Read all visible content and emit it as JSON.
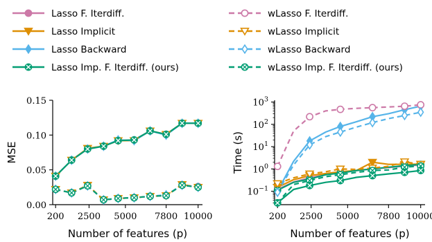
{
  "colors": {
    "lasso_fi": "#cc79a7",
    "lasso_implicit": "#de8f05",
    "lasso_backward": "#56b4e9",
    "lasso_imp_fi": "#029e73"
  },
  "legend": [
    {
      "label": "Lasso F. Iterdiff.",
      "color_key": "lasso_fi",
      "dashed": false,
      "marker": "circle"
    },
    {
      "label": "wLasso F. Iterdiff.",
      "color_key": "lasso_fi",
      "dashed": true,
      "marker": "circle"
    },
    {
      "label": "Lasso Implicit",
      "color_key": "lasso_implicit",
      "dashed": false,
      "marker": "triangle-down"
    },
    {
      "label": "wLasso Implicit",
      "color_key": "lasso_implicit",
      "dashed": true,
      "marker": "triangle-down"
    },
    {
      "label": "Lasso Backward",
      "color_key": "lasso_backward",
      "dashed": false,
      "marker": "diamond"
    },
    {
      "label": "wLasso Backward",
      "color_key": "lasso_backward",
      "dashed": true,
      "marker": "diamond"
    },
    {
      "label": "Lasso Imp. F. Iterdiff. (ours)",
      "color_key": "lasso_imp_fi",
      "dashed": false,
      "marker": "x-circle"
    },
    {
      "label": "wLasso Imp. F. Iterdiff. (ours)",
      "color_key": "lasso_imp_fi",
      "dashed": true,
      "marker": "x-circle"
    }
  ],
  "chart_data": [
    {
      "type": "line",
      "xlabel": "Number of features (p)",
      "ylabel": "MSE",
      "x_ticks": [
        200,
        2500,
        5000,
        7800,
        10000
      ],
      "y_ticks": [
        0.0,
        0.05,
        0.1,
        0.15
      ],
      "y_tick_labels": [
        "0.00",
        "0.05",
        "0.10",
        "0.15"
      ],
      "xlim": [
        0,
        10300
      ],
      "ylim": [
        0.0,
        0.15
      ],
      "yscale": "linear",
      "series": [
        {
          "name": "Lasso F. Iterdiff.",
          "color_key": "lasso_fi",
          "dashed": false,
          "marker": "circle",
          "x": [
            200,
            1300,
            2400,
            3500,
            4500,
            5600,
            6700,
            7800,
            8900,
            10000
          ],
          "y": [
            0.041,
            0.064,
            0.08,
            0.084,
            0.092,
            0.093,
            0.106,
            0.101,
            0.117,
            0.117
          ]
        },
        {
          "name": "Lasso Implicit",
          "color_key": "lasso_implicit",
          "dashed": false,
          "marker": "triangle-down",
          "x": [
            200,
            1300,
            2400,
            3500,
            4500,
            5600,
            6700,
            7800,
            8900,
            10000
          ],
          "y": [
            0.041,
            0.064,
            0.081,
            0.084,
            0.092,
            0.092,
            0.106,
            0.101,
            0.117,
            0.117
          ]
        },
        {
          "name": "Lasso Backward",
          "color_key": "lasso_backward",
          "dashed": false,
          "marker": "diamond",
          "x": [
            200,
            1300,
            2400,
            3500,
            4500,
            5600,
            6700,
            7800,
            8900,
            10000
          ],
          "y": [
            0.041,
            0.064,
            0.08,
            0.084,
            0.093,
            0.092,
            0.106,
            0.1,
            0.117,
            0.117
          ]
        },
        {
          "name": "Lasso Imp. F. Iterdiff. (ours)",
          "color_key": "lasso_imp_fi",
          "dashed": false,
          "marker": "x-circle",
          "x": [
            200,
            1300,
            2400,
            3500,
            4500,
            5600,
            6700,
            7800,
            8900,
            10000
          ],
          "y": [
            0.041,
            0.064,
            0.08,
            0.084,
            0.092,
            0.093,
            0.106,
            0.101,
            0.117,
            0.117
          ]
        },
        {
          "name": "wLasso F. Iterdiff.",
          "color_key": "lasso_fi",
          "dashed": true,
          "marker": "circle",
          "x": [
            200,
            1300,
            2400,
            3500,
            4500,
            5600,
            6700,
            7800,
            8900,
            10000
          ],
          "y": [
            0.022,
            0.017,
            0.027,
            0.007,
            0.009,
            0.01,
            0.012,
            0.013,
            0.028,
            0.026
          ]
        },
        {
          "name": "wLasso Implicit",
          "color_key": "lasso_implicit",
          "dashed": true,
          "marker": "triangle-down",
          "x": [
            200,
            1300,
            2400,
            3500,
            4500,
            5600,
            6700,
            7800,
            8900,
            10000
          ],
          "y": [
            0.022,
            0.017,
            0.028,
            0.007,
            0.009,
            0.01,
            0.012,
            0.013,
            0.029,
            0.025
          ]
        },
        {
          "name": "wLasso Backward",
          "color_key": "lasso_backward",
          "dashed": true,
          "marker": "diamond",
          "x": [
            200,
            1300,
            2400,
            3500,
            4500,
            5600,
            6700,
            7800,
            8900,
            10000
          ],
          "y": [
            0.022,
            0.017,
            0.027,
            0.007,
            0.009,
            0.01,
            0.012,
            0.014,
            0.028,
            0.025
          ]
        },
        {
          "name": "wLasso Imp. F. Iterdiff. (ours)",
          "color_key": "lasso_imp_fi",
          "dashed": true,
          "marker": "x-circle",
          "x": [
            200,
            1300,
            2400,
            3500,
            4500,
            5600,
            6700,
            7800,
            8900,
            10000
          ],
          "y": [
            0.022,
            0.017,
            0.027,
            0.007,
            0.009,
            0.01,
            0.012,
            0.013,
            0.028,
            0.025
          ]
        }
      ]
    },
    {
      "type": "line",
      "xlabel": "Number of features (p)",
      "ylabel": "Time (s)",
      "x_ticks": [
        200,
        2500,
        5000,
        7800,
        10000
      ],
      "y_ticks": [
        0.1,
        1,
        10,
        100,
        1000
      ],
      "y_tick_labels": [
        "10^-1",
        "10^0",
        "10^1",
        "10^2",
        "10^3"
      ],
      "xlim": [
        0,
        10300
      ],
      "ylim": [
        0.025,
        1200
      ],
      "yscale": "log",
      "series": [
        {
          "name": "Lasso F. Iterdiff.",
          "color_key": "lasso_fi",
          "dashed": false,
          "marker": "circle",
          "x": [
            200,
            1300,
            2400,
            3500,
            4500,
            5600,
            6700,
            7800,
            8900,
            10000
          ],
          "y": [
            0.12,
            0.26,
            0.4,
            0.55,
            0.7,
            0.85,
            1.0,
            1.15,
            1.35,
            1.5
          ]
        },
        {
          "name": "Lasso Implicit",
          "color_key": "lasso_implicit",
          "dashed": false,
          "marker": "triangle-down",
          "x": [
            200,
            1300,
            2400,
            3500,
            4500,
            5600,
            6700,
            7800,
            8900,
            10000
          ],
          "y": [
            0.15,
            0.33,
            0.5,
            0.62,
            0.75,
            0.85,
            2.0,
            1.6,
            1.6,
            1.65
          ]
        },
        {
          "name": "Lasso Backward",
          "color_key": "lasso_backward",
          "dashed": false,
          "marker": "diamond",
          "x": [
            200,
            1300,
            2400,
            3500,
            4500,
            5600,
            6700,
            7800,
            8900,
            10000
          ],
          "y": [
            0.1,
            2.2,
            18,
            45,
            80,
            130,
            220,
            300,
            450,
            650
          ]
        },
        {
          "name": "Lasso Imp. F. Iterdiff. (ours)",
          "color_key": "lasso_imp_fi",
          "dashed": false,
          "marker": "x-circle",
          "x": [
            200,
            1300,
            2400,
            3500,
            4500,
            5600,
            6700,
            7800,
            8900,
            10000
          ],
          "y": [
            0.11,
            0.25,
            0.35,
            0.55,
            0.65,
            0.85,
            1.0,
            1.2,
            1.4,
            1.6
          ]
        },
        {
          "name": "wLasso F. Iterdiff.",
          "color_key": "lasso_fi",
          "dashed": true,
          "marker": "circle",
          "x": [
            200,
            1300,
            2400,
            3500,
            4500,
            5600,
            6700,
            7800,
            8900,
            10000
          ],
          "y": [
            1.3,
            50,
            220,
            400,
            470,
            520,
            560,
            600,
            650,
            750
          ]
        },
        {
          "name": "wLasso Implicit",
          "color_key": "lasso_implicit",
          "dashed": true,
          "marker": "triangle-down",
          "x": [
            200,
            1300,
            2400,
            3500,
            4500,
            5600,
            6700,
            7800,
            8900,
            10000
          ],
          "y": [
            0.22,
            0.4,
            0.6,
            0.75,
            1.0,
            0.95,
            1.1,
            1.3,
            2.1,
            1.6
          ]
        },
        {
          "name": "wLasso Backward",
          "color_key": "lasso_backward",
          "dashed": true,
          "marker": "diamond",
          "x": [
            200,
            1300,
            2400,
            3500,
            4500,
            5600,
            6700,
            7800,
            8900,
            10000
          ],
          "y": [
            0.09,
            1.5,
            12,
            28,
            45,
            75,
            120,
            180,
            250,
            350
          ]
        },
        {
          "name": "wLasso Imp. F. Iterdiff. (ours)",
          "color_key": "lasso_imp_fi",
          "dashed": true,
          "marker": "x-circle",
          "x": [
            200,
            1300,
            2400,
            3500,
            4500,
            5600,
            6700,
            7800,
            8900,
            10000
          ],
          "y": [
            0.03,
            0.2,
            0.3,
            0.45,
            0.55,
            0.7,
            0.85,
            0.9,
            1.2,
            1.35
          ]
        },
        {
          "name": "",
          "color_key": "lasso_imp_fi",
          "dashed": false,
          "marker": "x-circle",
          "x": [
            200,
            1300,
            2400,
            3500,
            4500,
            5600,
            6700,
            7800,
            8900,
            10000
          ],
          "y": [
            0.03,
            0.12,
            0.18,
            0.25,
            0.3,
            0.42,
            0.5,
            0.6,
            0.7,
            0.85
          ]
        }
      ]
    }
  ]
}
